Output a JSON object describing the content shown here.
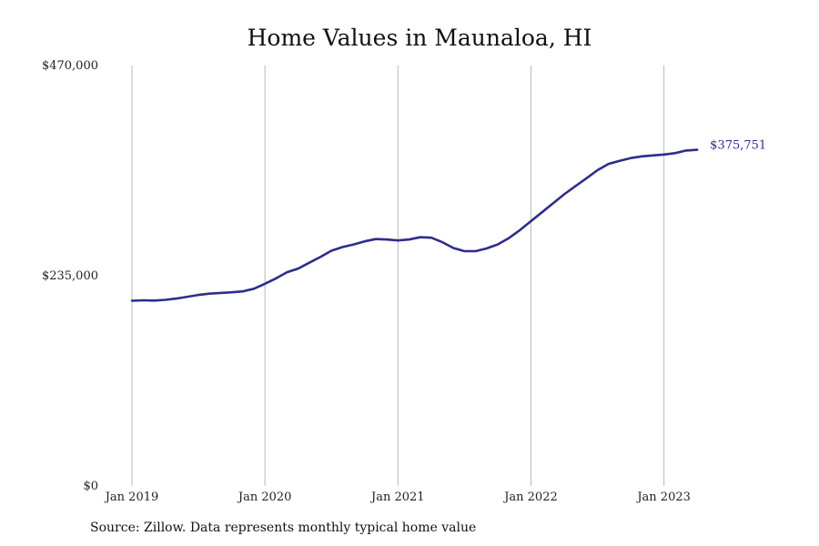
{
  "chart_data": {
    "type": "line",
    "title": "Home Values in Maunaloa, HI",
    "source": "Source: Zillow. Data represents monthly typical home value",
    "xlabel": "",
    "ylabel": "",
    "ylim": [
      0,
      470000
    ],
    "y_ticks": [
      "$0",
      "$235,000",
      "$470,000"
    ],
    "x_ticks": [
      "Jan 2019",
      "Jan 2020",
      "Jan 2021",
      "Jan 2022",
      "Jan 2023"
    ],
    "x_tick_months": [
      0,
      12,
      24,
      36,
      48
    ],
    "grid": "vertical",
    "line_color": "#2e2d8a",
    "end_label": "$375,751",
    "series": [
      {
        "values": [
          207000,
          207500,
          207200,
          208000,
          209500,
          211500,
          213500,
          215000,
          215800,
          216500,
          217500,
          220500,
          226000,
          232000,
          239000,
          243000,
          249500,
          256000,
          263000,
          267000,
          270000,
          273500,
          276000,
          275500,
          274500,
          275500,
          278000,
          277500,
          272500,
          266000,
          262500,
          262500,
          265500,
          270000,
          277000,
          286000,
          296000,
          306000,
          316000,
          326000,
          335000,
          344000,
          353000,
          360000,
          363500,
          366500,
          368500,
          369500,
          370500,
          372000,
          375000,
          375751
        ]
      }
    ]
  }
}
